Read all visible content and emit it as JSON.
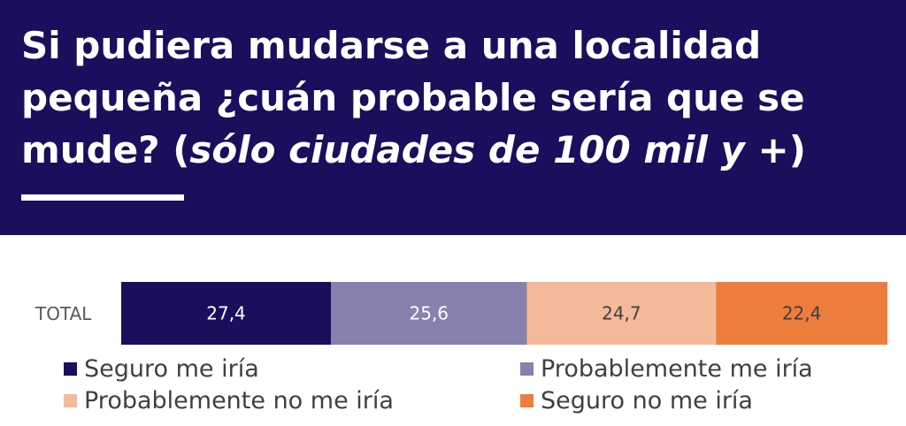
{
  "title": {
    "main": "Si pudiera mudarse a una localidad pequeña ¿cuán probable sería que se mude? (",
    "italic": "sólo ciudades de 100 mil y +",
    "close": ")"
  },
  "chart_data": {
    "type": "bar",
    "orientation": "horizontal-stacked",
    "categories": [
      "TOTAL"
    ],
    "series": [
      {
        "name": "Seguro me iría",
        "values": [
          27.4
        ],
        "label": "27,4",
        "color": "#1b0e5c",
        "label_color": "#ffffff"
      },
      {
        "name": "Probablemente me iría",
        "values": [
          25.6
        ],
        "label": "25,6",
        "color": "#8880ae",
        "label_color": "#ffffff"
      },
      {
        "name": "Probablemente no me iría",
        "values": [
          24.7
        ],
        "label": "24,7",
        "color": "#f3b999",
        "label_color": "#404040"
      },
      {
        "name": "Seguro no me iría",
        "values": [
          22.4
        ],
        "label": "22,4",
        "color": "#ec7d3c",
        "label_color": "#404040"
      }
    ],
    "legend_position": "bottom",
    "grid": false
  }
}
